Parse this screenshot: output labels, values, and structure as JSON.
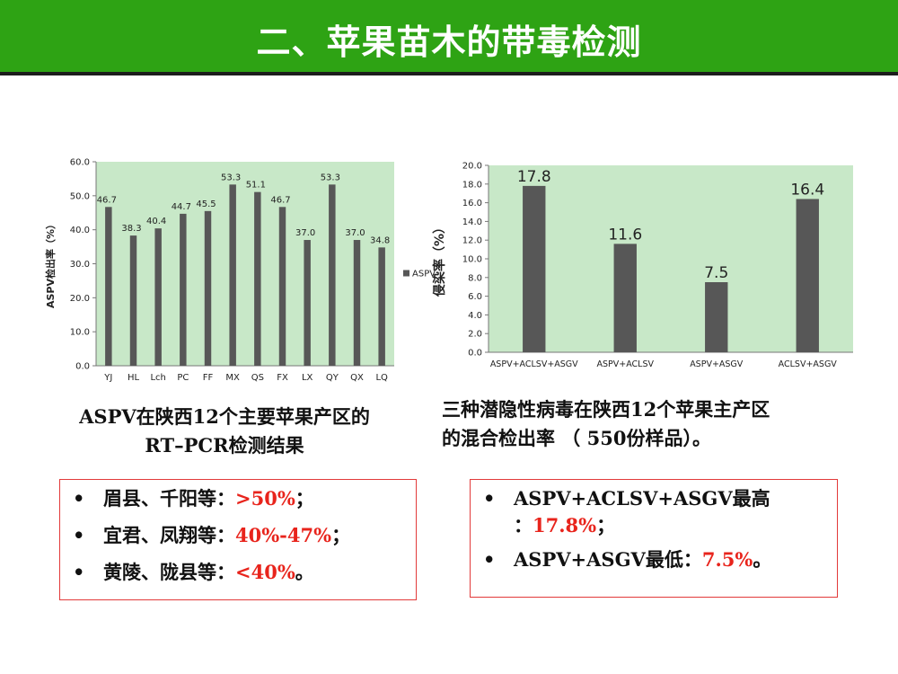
{
  "title": "二、苹果苗木的带毒检测",
  "chart_data": [
    {
      "type": "bar",
      "ylabel": "ASPV检出率（%）",
      "categories": [
        "YJ",
        "HL",
        "Lch",
        "PC",
        "FF",
        "MX",
        "QS",
        "FX",
        "LX",
        "QY",
        "QX",
        "LQ"
      ],
      "series": [
        {
          "name": "ASPV",
          "values": [
            46.7,
            38.3,
            40.4,
            44.7,
            45.5,
            53.3,
            51.1,
            46.7,
            37.0,
            53.3,
            37.0,
            34.8
          ]
        }
      ],
      "data_labels": [
        "46.7",
        "38.3",
        "40.4",
        "44.7",
        "45.5",
        "53.3",
        "51.1",
        "46.7",
        "37.0",
        "53.3",
        "37.0",
        "34.8"
      ],
      "ylim": [
        0,
        60
      ],
      "yticks": [
        "0.0",
        "10.0",
        "20.0",
        "30.0",
        "40.0",
        "50.0",
        "60.0"
      ],
      "legend_label": "ASPV",
      "legend_position": "right",
      "background": "#c8e8c8",
      "bar_color": "#575757"
    },
    {
      "type": "bar",
      "ylabel": "侵染率（%）",
      "categories": [
        "ASPV+ACLSV+ASGV",
        "ASPV+ACLSV",
        "ASPV+ASGV",
        "ACLSV+ASGV"
      ],
      "values": [
        17.8,
        11.6,
        7.5,
        16.4
      ],
      "data_labels": [
        "17.8",
        "11.6",
        "7.5",
        "16.4"
      ],
      "ylim": [
        0,
        20
      ],
      "yticks": [
        "0.0",
        "2.0",
        "4.0",
        "6.0",
        "8.0",
        "10.0",
        "12.0",
        "14.0",
        "16.0",
        "18.0",
        "20.0"
      ],
      "background": "#c8e8c8",
      "bar_color": "#575757"
    }
  ],
  "captions": {
    "left_line1": "ASPV在陕西12个主要苹果产区的",
    "left_line2": "RT–PCR检测结果",
    "right_line1": "三种潜隐性病毒在陕西12个苹果主产区",
    "right_line2": "的混合检出率 （ 550份样品）。"
  },
  "bullet_char": "•",
  "left_box": [
    {
      "text": "眉县、千阳等：",
      "value": ">50%",
      "suffix": "；"
    },
    {
      "text": "宜君、凤翔等：",
      "value": "40%-47%",
      "suffix": "；"
    },
    {
      "text": "黄陵、陇县等：",
      "value": "<40%",
      "suffix": "。"
    }
  ],
  "right_box": [
    {
      "line1": "ASPV+ACLSV+ASGV最高",
      "line2_prefix": "：",
      "value": "17.8%",
      "suffix": "；"
    },
    {
      "text": "ASPV+ASGV最低：",
      "value": "7.5%",
      "suffix": "。"
    }
  ],
  "colors": {
    "title_bar": "#2ea314",
    "highlight": "#e8241c",
    "box_border": "#e23a3a"
  }
}
